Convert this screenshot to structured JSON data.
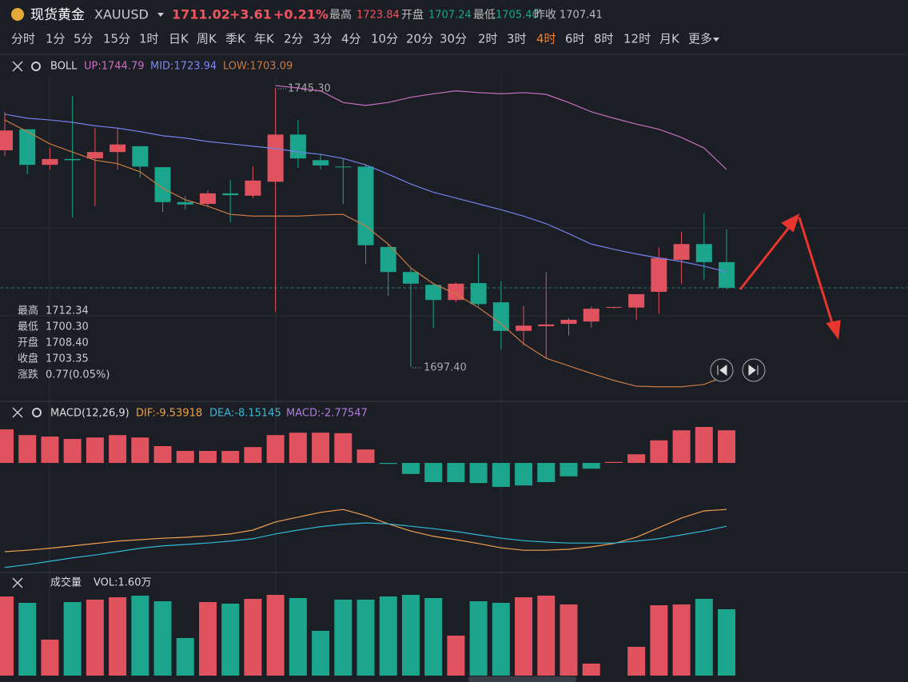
{
  "header": {
    "name": "现货黄金",
    "symbol": "XAUUSD",
    "price": "1711.02",
    "change": "+3.61",
    "change_pct": "+0.21%",
    "stats": [
      {
        "label": "最高",
        "value": "1723.84"
      },
      {
        "label": "开盘",
        "value": "1707.24"
      },
      {
        "label": "最低",
        "value": "1705.40"
      },
      {
        "label": "昨收",
        "value": "1707.41"
      }
    ]
  },
  "timeframes": [
    "分时",
    "1分",
    "5分",
    "15分",
    "1时",
    "日K",
    "周K",
    "季K",
    "年K",
    "2分",
    "3分",
    "4分",
    "10分",
    "20分",
    "30分",
    "2时",
    "3时",
    "4时",
    "6时",
    "8时",
    "12时",
    "月K",
    "更多"
  ],
  "active_timeframe_index": 17,
  "info": [
    {
      "label": "最高",
      "value": "1712.34"
    },
    {
      "label": "最低",
      "value": "1700.30"
    },
    {
      "label": "开盘",
      "value": "1708.40"
    },
    {
      "label": "收盘",
      "value": "1703.35"
    },
    {
      "label": "涨跌",
      "value": "0.77(0.05%)"
    }
  ],
  "chart_data": [
    {
      "type": "candlestick",
      "indicator": "BOLL",
      "legend": [
        "UP:1744.79",
        "MID:1723.94",
        "LOW:1703.09"
      ],
      "annotations": [
        "1745.30",
        "1697.40"
      ],
      "up_color": "#e0525e",
      "down_color": "#1ba58c",
      "ylim": [
        1691.77,
        1750.79
      ],
      "open": [
        1734.6,
        1738.2,
        1732.1,
        1733.1,
        1733.2,
        1734.3,
        1735.3,
        1731.7,
        1725.7,
        1725.4,
        1727.2,
        1726.8,
        1729.2,
        1737.3,
        1732.9,
        1731.8,
        1731.8,
        1718.0,
        1713.7,
        1711.5,
        1708.9,
        1711.8,
        1708.5,
        1703.6,
        1704.4,
        1704.8,
        1705.2,
        1707.6,
        1707.6,
        1710.3,
        1715.8,
        1718.5,
        1715.4
      ],
      "close": [
        1738.0,
        1732.1,
        1733.1,
        1732.9,
        1734.3,
        1735.6,
        1731.8,
        1725.7,
        1725.3,
        1727.2,
        1726.9,
        1729.4,
        1737.3,
        1733.2,
        1732.0,
        1731.7,
        1718.3,
        1713.7,
        1711.7,
        1708.9,
        1711.7,
        1708.2,
        1703.6,
        1704.5,
        1704.7,
        1705.5,
        1707.4,
        1707.7,
        1709.9,
        1716.1,
        1718.5,
        1715.4,
        1711.0
      ],
      "high": [
        1741.2,
        1738.2,
        1735.0,
        1743.9,
        1738.4,
        1738.4,
        1735.3,
        1731.7,
        1726.8,
        1727.7,
        1729.5,
        1731.8,
        1745.3,
        1739.8,
        1734.0,
        1733.2,
        1732.1,
        1718.5,
        1714.4,
        1711.7,
        1711.9,
        1716.8,
        1712.1,
        1707.9,
        1713.7,
        1705.8,
        1707.8,
        1707.7,
        1709.9,
        1717.9,
        1720.6,
        1723.8,
        1721.0
      ],
      "low": [
        1733.6,
        1730.5,
        1731.3,
        1723.1,
        1725.0,
        1731.3,
        1729.9,
        1724.0,
        1724.4,
        1725.0,
        1722.2,
        1726.4,
        1706.9,
        1731.6,
        1731.3,
        1725.4,
        1715.1,
        1709.6,
        1697.4,
        1704.1,
        1708.5,
        1707.8,
        1700.4,
        1701.1,
        1698.9,
        1702.8,
        1704.1,
        1707.4,
        1705.5,
        1706.5,
        1711.7,
        1712.4,
        1710.7
      ],
      "lines": [
        {
          "color": "#c96fc0",
          "values": [
            null,
            null,
            null,
            null,
            null,
            null,
            null,
            null,
            null,
            null,
            null,
            null,
            1745.7,
            1745.3,
            1744.8,
            1742.8,
            1742.3,
            1742.8,
            1743.7,
            1744.3,
            1744.8,
            1744.5,
            1744.3,
            1744.5,
            1744.2,
            1742.8,
            1741.2,
            1740.1,
            1739.1,
            1738.2,
            1736.8,
            1735.0,
            1731.3
          ]
        },
        {
          "color": "#7282e8",
          "values": [
            1740.8,
            1740.1,
            1739.8,
            1739.4,
            1738.8,
            1738.4,
            1737.8,
            1737.1,
            1736.7,
            1736.1,
            1735.7,
            1735.3,
            1734.9,
            1734.3,
            1733.9,
            1733.2,
            1732.1,
            1730.5,
            1728.8,
            1727.4,
            1726.4,
            1725.4,
            1724.4,
            1723.3,
            1722.0,
            1720.3,
            1718.5,
            1717.6,
            1716.8,
            1716.1,
            1715.5,
            1714.7,
            1713.7
          ]
        },
        {
          "color": "#c87a45",
          "values": [
            1739.8,
            1737.8,
            1735.7,
            1734.3,
            1732.9,
            1732.3,
            1730.9,
            1728.1,
            1726.1,
            1725.0,
            1723.6,
            1723.3,
            1723.3,
            1723.3,
            1723.5,
            1723.6,
            1721.6,
            1718.5,
            1714.4,
            1711.7,
            1709.9,
            1707.6,
            1704.8,
            1701.4,
            1698.9,
            1697.6,
            1696.3,
            1695.1,
            1694.1,
            1694.0,
            1694.0,
            1694.4,
            1695.9
          ]
        }
      ]
    },
    {
      "type": "macd",
      "title": "MACD(12,26,9)",
      "legend": [
        "DIF:-9.53918",
        "DEA:-8.15145",
        "MACD:-2.77547"
      ],
      "ylim": [
        -22.67,
        12.33
      ],
      "pos_color": "#e0525e",
      "neg_color": "#1ba58c",
      "values": [
        7.0,
        5.8,
        5.5,
        5.0,
        5.3,
        5.8,
        5.3,
        3.5,
        2.5,
        2.5,
        2.5,
        3.3,
        5.8,
        6.3,
        6.3,
        6.2,
        2.8,
        -0.2,
        -2.3,
        -4.0,
        -4.0,
        -4.2,
        -5.0,
        -4.7,
        -4.0,
        -2.8,
        -1.2,
        0.2,
        1.8,
        4.7,
        6.8,
        7.5,
        6.8
      ],
      "series": [
        {
          "color": "#f0a050",
          "values": [
            -18.5,
            -18.2,
            -17.8,
            -17.3,
            -16.8,
            -16.3,
            -16.0,
            -15.7,
            -15.5,
            -15.2,
            -14.8,
            -14.0,
            -12.3,
            -11.3,
            -10.3,
            -9.7,
            -11.0,
            -12.7,
            -14.2,
            -15.3,
            -16.0,
            -16.8,
            -17.7,
            -18.2,
            -18.2,
            -18.0,
            -17.5,
            -16.8,
            -15.5,
            -13.5,
            -11.5,
            -10.0,
            -9.7
          ]
        },
        {
          "color": "#30b8d8",
          "values": [
            -21.8,
            -21.2,
            -20.5,
            -19.8,
            -19.2,
            -18.5,
            -17.8,
            -17.3,
            -17.0,
            -16.7,
            -16.3,
            -15.8,
            -14.8,
            -14.0,
            -13.3,
            -12.8,
            -12.5,
            -12.7,
            -13.2,
            -13.7,
            -14.3,
            -15.0,
            -15.7,
            -16.2,
            -16.5,
            -16.7,
            -16.7,
            -16.7,
            -16.3,
            -15.8,
            -15.0,
            -14.2,
            -13.2
          ]
        }
      ]
    },
    {
      "type": "bar",
      "title": "成交量",
      "legend": [
        "VOL:1.60万"
      ],
      "ylim": [
        0,
        2.5
      ],
      "values": [
        1.98,
        1.82,
        0.9,
        1.84,
        1.9,
        1.96,
        2.0,
        1.86,
        0.94,
        1.84,
        1.8,
        1.92,
        2.02,
        1.94,
        1.12,
        1.9,
        1.9,
        1.98,
        2.02,
        1.94,
        1.0,
        1.86,
        1.82,
        1.96,
        2.0,
        1.78,
        0.3,
        0,
        0.72,
        1.76,
        1.78,
        1.92,
        1.66
      ]
    }
  ]
}
